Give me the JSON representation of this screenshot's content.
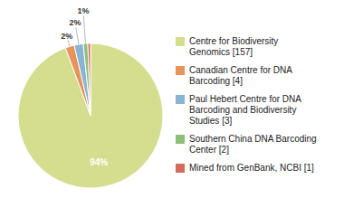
{
  "chart_data": {
    "type": "pie",
    "categories": [
      "Centre for Biodiversity\nGenomics [157]",
      "Canadian Centre for DNA\nBarcoding [4]",
      "Paul Hebert Centre for DNA\nBarcoding and Biodiversity\nStudies [3]",
      "Southern China DNA Barcoding\nCenter [2]",
      "Mined from GenBank, NCBI [1]"
    ],
    "values": [
      94,
      2,
      2,
      1,
      0.6
    ],
    "value_labels": [
      "94%",
      "2%",
      "2%",
      "1%",
      null
    ],
    "colors": [
      "#d4de8e",
      "#e8935a",
      "#8ab4d4",
      "#8cbf7a",
      "#d46a5a"
    ],
    "data_labels": true,
    "legend": "right"
  }
}
